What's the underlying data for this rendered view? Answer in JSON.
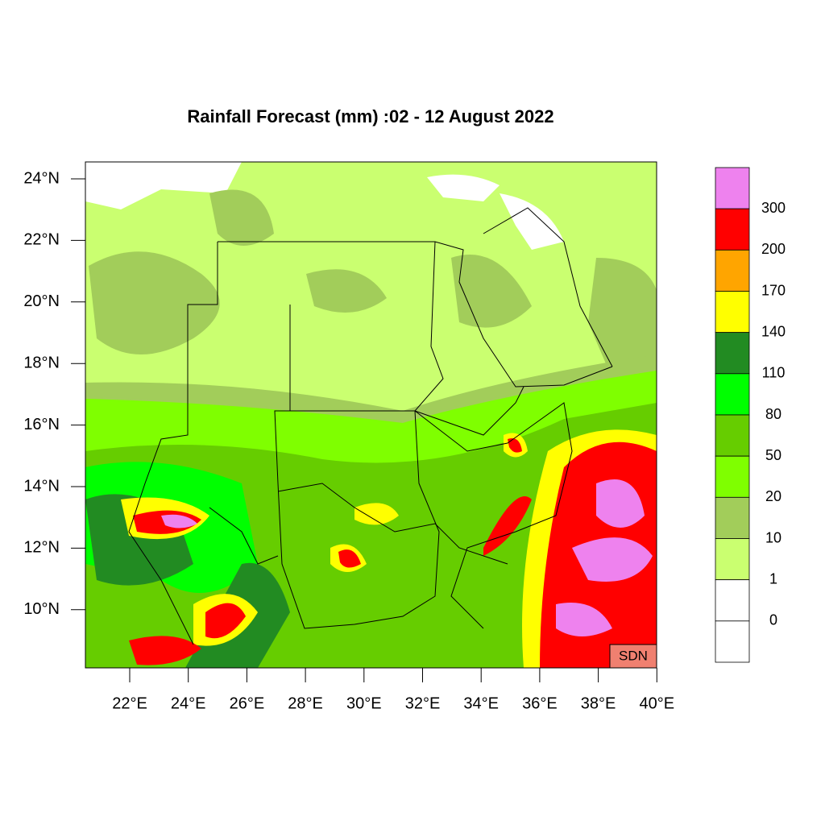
{
  "title": "Rainfall Forecast (mm) :02 - 12 August  2022",
  "lat_labels": [
    "24°N",
    "22°N",
    "20°N",
    "18°N",
    "16°N",
    "14°N",
    "12°N",
    "10°N"
  ],
  "lon_labels": [
    "22°E",
    "24°E",
    "26°E",
    "28°E",
    "30°E",
    "32°E",
    "34°E",
    "36°E",
    "38°E",
    "40°E"
  ],
  "badge": "SDN",
  "colorbar": {
    "colors": [
      "#ee82ee",
      "#ff0000",
      "#ffa500",
      "#ffff00",
      "#228b22",
      "#00ff00",
      "#66cd00",
      "#7fff00",
      "#a2cd5a",
      "#caff70",
      "#ffffff",
      "#ffffff"
    ],
    "labels": [
      "300",
      "200",
      "170",
      "140",
      "110",
      "80",
      "50",
      "20",
      "10",
      "1",
      "0"
    ]
  }
}
